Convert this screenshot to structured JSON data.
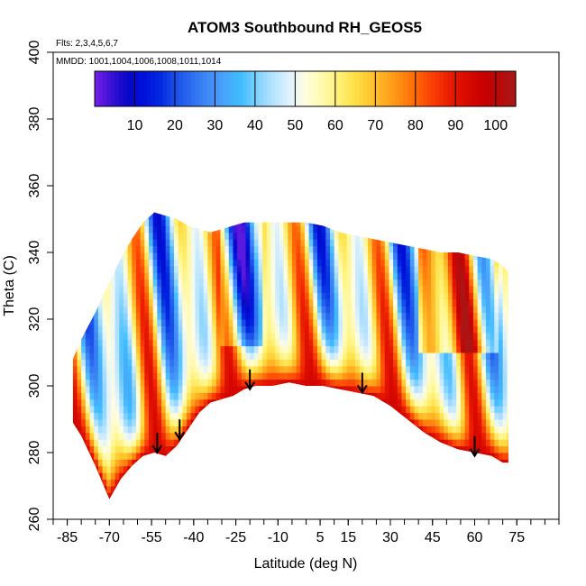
{
  "chart_data": {
    "type": "heatmap",
    "title": "ATOM3 Southbound RH_GEOS5",
    "flights_note": "Flts: 2,3,4,5,6,7",
    "dates_note": "MMDD: 1001,1004,1006,1008,1011,1014",
    "xlabel": "Latitude (deg N)",
    "ylabel": "Theta (C)",
    "xlim": [
      -90,
      90
    ],
    "ylim": [
      260,
      400
    ],
    "x_ticks": [
      -85,
      -70,
      -55,
      -40,
      -25,
      -10,
      5,
      15,
      30,
      45,
      60,
      75
    ],
    "y_ticks": [
      260,
      280,
      300,
      320,
      340,
      360,
      380,
      400
    ],
    "colorbar": {
      "range": [
        0,
        105
      ],
      "tick_values": [
        10,
        20,
        30,
        40,
        50,
        60,
        70,
        80,
        90,
        100
      ],
      "tick_labels": [
        "10",
        "20",
        "30",
        "40",
        "50",
        "60",
        "70",
        "80",
        "90",
        "100"
      ],
      "colors": [
        "#7a1fe8",
        "#3a12d6",
        "#0a07c8",
        "#0010d8",
        "#0028e0",
        "#1a50e8",
        "#2e6ef0",
        "#3f8af5",
        "#49a3fa",
        "#3fbcff",
        "#7fd0ff",
        "#b5e3ff",
        "#dff2ff",
        "#fffde0",
        "#fffab0",
        "#fff27a",
        "#ffe14a",
        "#ffc830",
        "#ffa820",
        "#ff8810",
        "#ff6008",
        "#f83a04",
        "#e81a00",
        "#d80a00",
        "#c80000",
        "#b80a0a",
        "#a81818"
      ]
    },
    "profile_bounds": {
      "lat": [
        -83,
        -80,
        -75,
        -70,
        -66,
        -62,
        -58,
        -54,
        -50,
        -46,
        -42,
        -38,
        -34,
        -30,
        -26,
        -22,
        -18,
        -12,
        -6,
        0,
        6,
        12,
        18,
        24,
        30,
        36,
        42,
        48,
        54,
        60,
        66,
        70,
        72
      ],
      "theta_top": [
        308,
        314,
        322,
        331,
        338,
        344,
        349,
        352,
        351,
        350,
        348,
        347,
        346,
        347,
        348,
        349,
        349,
        349,
        349,
        349,
        348,
        346,
        345,
        344,
        343,
        342,
        341,
        340,
        340,
        339,
        338,
        336,
        334
      ],
      "theta_bottom": [
        289,
        285,
        276,
        266,
        272,
        276,
        279,
        280,
        279,
        282,
        287,
        292,
        295,
        296,
        297,
        299,
        300,
        300,
        301,
        300,
        300,
        299,
        298,
        297,
        294,
        290,
        286,
        283,
        281,
        280,
        279,
        277,
        277
      ]
    },
    "tropopause_arrows": [
      {
        "lat": -53,
        "theta": 280
      },
      {
        "lat": -45,
        "theta": 284
      },
      {
        "lat": -20,
        "theta": 299
      },
      {
        "lat": 20,
        "theta": 298
      },
      {
        "lat": 60,
        "theta": 279
      }
    ]
  }
}
